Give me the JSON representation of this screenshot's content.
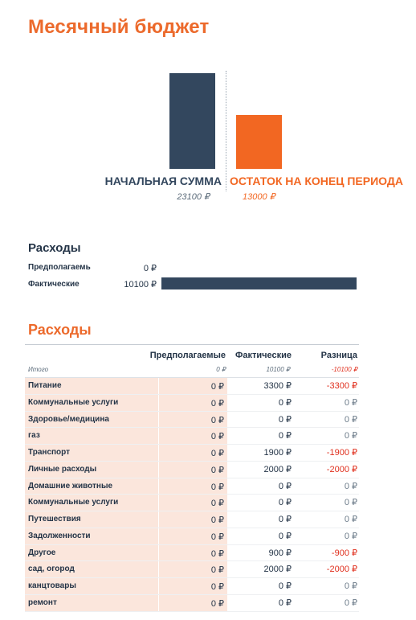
{
  "title": "Месячный бюджет",
  "summary": {
    "start_label": "НАЧАЛЬНАЯ СУММА",
    "start_value": "23100 ₽",
    "end_label": "ОСТАТОК НА КОНЕЦ ПЕРИОДА",
    "end_value": "13000 ₽",
    "start_amount": 23100,
    "end_amount": 13000,
    "colors": {
      "start": "#33475e",
      "end": "#f26722"
    }
  },
  "expenses_compare": {
    "title": "Расходы",
    "planned_label": "Предполагаемь",
    "planned_value": "0 ₽",
    "planned_amount": 0,
    "actual_label": "Фактические",
    "actual_value": "10100 ₽",
    "actual_amount": 10100
  },
  "table": {
    "title": "Расходы",
    "headers": {
      "planned": "Предполагаемые",
      "actual": "Фактические",
      "diff": "Разница"
    },
    "total": {
      "label": "Итого",
      "planned": "0 ₽",
      "actual": "10100 ₽",
      "diff": "-10100 ₽"
    },
    "rows": [
      {
        "name": "Питание",
        "planned": "0 ₽",
        "actual": "3300 ₽",
        "diff": "-3300 ₽"
      },
      {
        "name": "Коммунальные услуги",
        "planned": "0 ₽",
        "actual": "0 ₽",
        "diff": "0 ₽"
      },
      {
        "name": "Здоровье/медицина",
        "planned": "0 ₽",
        "actual": "0 ₽",
        "diff": "0 ₽"
      },
      {
        "name": " газ",
        "planned": "0 ₽",
        "actual": "0 ₽",
        "diff": "0 ₽"
      },
      {
        "name": "Транспорт",
        "planned": "0 ₽",
        "actual": "1900 ₽",
        "diff": "-1900 ₽"
      },
      {
        "name": "Личные расходы",
        "planned": "0 ₽",
        "actual": "2000 ₽",
        "diff": "-2000 ₽"
      },
      {
        "name": "Домашние животные",
        "planned": "0 ₽",
        "actual": "0 ₽",
        "diff": "0 ₽"
      },
      {
        "name": "Коммунальные услуги",
        "planned": "0 ₽",
        "actual": "0 ₽",
        "diff": "0 ₽"
      },
      {
        "name": "Путешествия",
        "planned": "0 ₽",
        "actual": "0 ₽",
        "diff": "0 ₽"
      },
      {
        "name": "Задолженности",
        "planned": "0 ₽",
        "actual": "0 ₽",
        "diff": "0 ₽"
      },
      {
        "name": "Другое",
        "planned": "0 ₽",
        "actual": "900 ₽",
        "diff": "-900 ₽"
      },
      {
        "name": "сад, огород",
        "planned": "0 ₽",
        "actual": "2000 ₽",
        "diff": "-2000 ₽"
      },
      {
        "name": "канцтовары",
        "planned": "0 ₽",
        "actual": "0 ₽",
        "diff": "0 ₽"
      },
      {
        "name": "ремонт",
        "planned": "0 ₽",
        "actual": "0 ₽",
        "diff": "0 ₽"
      }
    ]
  }
}
